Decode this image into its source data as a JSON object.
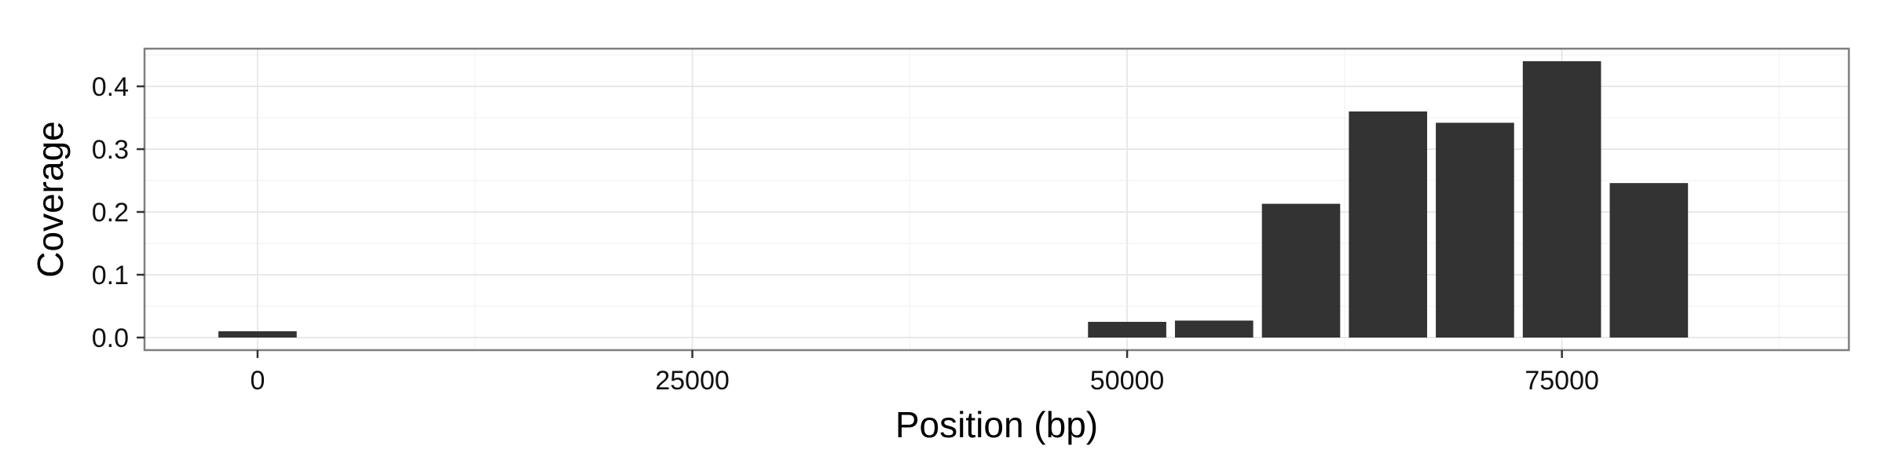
{
  "chart_data": {
    "type": "bar",
    "title": "",
    "xlabel": "Position (bp)",
    "ylabel": "Coverage",
    "x_ticks": [
      "0",
      "25000",
      "50000",
      "75000"
    ],
    "y_ticks": [
      "0.0",
      "0.1",
      "0.2",
      "0.3",
      "0.4"
    ],
    "xlim": [
      -6500,
      91500
    ],
    "ylim": [
      -0.02,
      0.46
    ],
    "bar_width": 4500,
    "x": [
      0,
      50000,
      55000,
      60000,
      65000,
      70000,
      75000,
      80000
    ],
    "values": [
      0.01,
      0.025,
      0.027,
      0.213,
      0.36,
      0.342,
      0.44,
      0.246
    ],
    "bar_color": "#333333",
    "grid": true,
    "panel_border_color": "#7f7f7f",
    "major_grid_color": "#e8e8e8",
    "minor_grid_color": "#f5f5f5",
    "legend": "none"
  }
}
